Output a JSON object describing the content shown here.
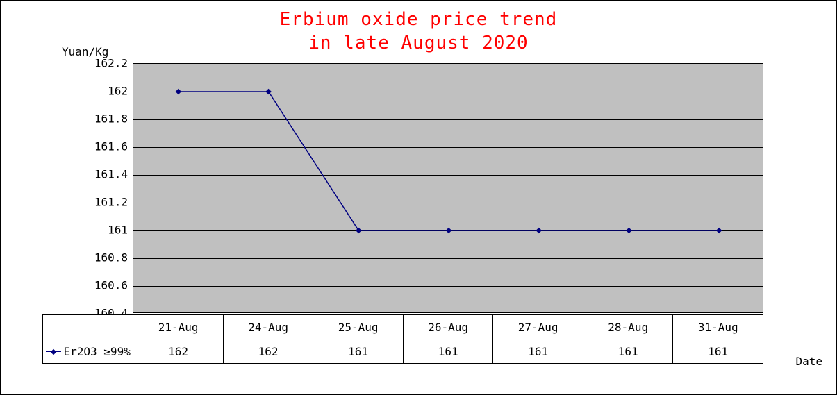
{
  "chart": {
    "type": "line",
    "title_line1": "Erbium oxide price trend",
    "title_line2": "in late August 2020",
    "title_color": "#ff0000",
    "title_fontsize": 26,
    "y_axis_label": "Yuan/Kg",
    "x_axis_label": "Date",
    "plot_background": "#c0c0c0",
    "grid_color": "#000000",
    "line_color": "#000080",
    "marker_style": "diamond",
    "marker_size": 6,
    "y_min": 160.4,
    "y_max": 162.2,
    "y_tick_step": 0.2,
    "y_ticks": [
      "160.4",
      "160.6",
      "160.8",
      "161",
      "161.2",
      "161.4",
      "161.6",
      "161.8",
      "162",
      "162.2"
    ],
    "categories": [
      "21-Aug",
      "24-Aug",
      "25-Aug",
      "26-Aug",
      "27-Aug",
      "28-Aug",
      "31-Aug"
    ],
    "series_label": "Er2O3 ≥99%",
    "values": [
      162,
      162,
      161,
      161,
      161,
      161,
      161
    ],
    "tick_fontsize": 16,
    "label_fontsize": 16
  }
}
